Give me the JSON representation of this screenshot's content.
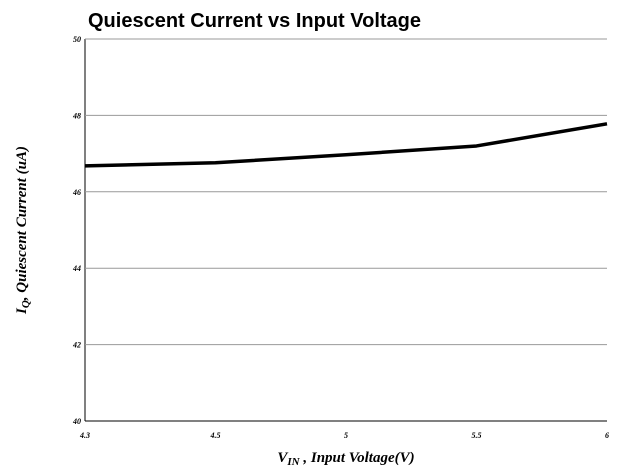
{
  "chart_data": {
    "type": "line",
    "title": "Quiescent Current vs Input Voltage",
    "x_label": {
      "main": "V",
      "sub": "IN",
      "rest": " , Input Voltage(V)"
    },
    "y_label": {
      "main": "I",
      "sub": "Q",
      "rest": ", Quiescent Current (uA)"
    },
    "categories": [
      "4.3",
      "4.5",
      "5",
      "5.5",
      "6"
    ],
    "series": [
      {
        "name": "IQ",
        "color": "#000000",
        "values": [
          46.68,
          46.76,
          46.97,
          47.2,
          47.78
        ]
      }
    ],
    "ylim": [
      40,
      50
    ],
    "yticks": [
      40,
      42,
      44,
      46,
      48,
      50
    ],
    "grid": true
  }
}
